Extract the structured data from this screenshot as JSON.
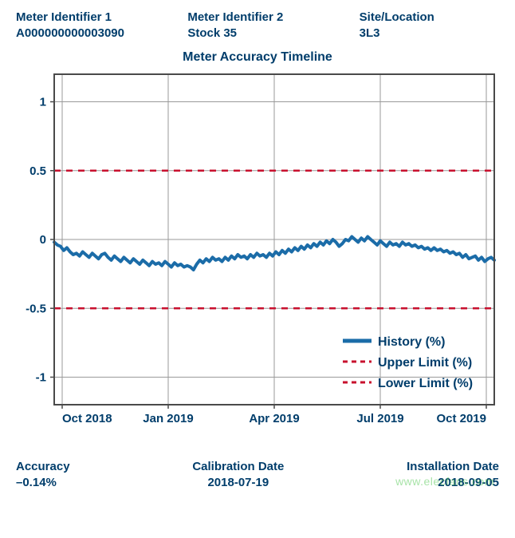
{
  "header": {
    "col1": {
      "label": "Meter Identifier 1",
      "value": "A000000000003090"
    },
    "col2": {
      "label": "Meter Identifier 2",
      "value": "Stock 35"
    },
    "col3": {
      "label": "Site/Location",
      "value": "3L3"
    }
  },
  "chart": {
    "type": "line",
    "title": "Meter Accuracy Timeline",
    "title_fontsize": 16,
    "background_color": "#ffffff",
    "plot_border_color": "#4a4a4a",
    "plot_border_width": 2,
    "grid_color": "#9a9a9a",
    "grid_width": 1,
    "label_color": "#003d6b",
    "label_fontsize": 15,
    "ylim": [
      -1.2,
      1.2
    ],
    "yticks": [
      1,
      0.5,
      0,
      -0.5,
      -1
    ],
    "ytick_labels": [
      "1",
      "0.5",
      "0",
      "-0.5",
      "-1"
    ],
    "x_categories": [
      "Oct 2018",
      "Jan 2019",
      "Apr 2019",
      "Jul 2019",
      "Oct 2019"
    ],
    "limits": {
      "upper": 0.5,
      "lower": -0.5,
      "color": "#c8102e",
      "dash": "8,7",
      "width": 2.5
    },
    "history": {
      "color": "#1b6ca8",
      "width": 4,
      "values": [
        -0.02,
        -0.04,
        -0.05,
        -0.08,
        -0.06,
        -0.09,
        -0.11,
        -0.1,
        -0.12,
        -0.09,
        -0.11,
        -0.13,
        -0.1,
        -0.12,
        -0.14,
        -0.11,
        -0.1,
        -0.13,
        -0.15,
        -0.12,
        -0.14,
        -0.16,
        -0.13,
        -0.15,
        -0.17,
        -0.14,
        -0.16,
        -0.18,
        -0.15,
        -0.17,
        -0.19,
        -0.16,
        -0.18,
        -0.17,
        -0.19,
        -0.16,
        -0.18,
        -0.2,
        -0.17,
        -0.19,
        -0.18,
        -0.2,
        -0.19,
        -0.2,
        -0.22,
        -0.18,
        -0.15,
        -0.17,
        -0.14,
        -0.16,
        -0.13,
        -0.15,
        -0.14,
        -0.16,
        -0.13,
        -0.15,
        -0.12,
        -0.14,
        -0.11,
        -0.13,
        -0.12,
        -0.14,
        -0.11,
        -0.13,
        -0.1,
        -0.12,
        -0.11,
        -0.13,
        -0.1,
        -0.12,
        -0.09,
        -0.11,
        -0.08,
        -0.1,
        -0.07,
        -0.09,
        -0.06,
        -0.08,
        -0.05,
        -0.07,
        -0.04,
        -0.06,
        -0.03,
        -0.05,
        -0.02,
        -0.04,
        -0.01,
        -0.03,
        0.0,
        -0.02,
        -0.05,
        -0.03,
        -0.0,
        -0.01,
        0.02,
        0.0,
        -0.02,
        0.01,
        -0.01,
        0.02,
        0.0,
        -0.02,
        -0.04,
        -0.01,
        -0.03,
        -0.05,
        -0.02,
        -0.04,
        -0.03,
        -0.05,
        -0.02,
        -0.04,
        -0.03,
        -0.05,
        -0.04,
        -0.06,
        -0.05,
        -0.07,
        -0.06,
        -0.08,
        -0.06,
        -0.08,
        -0.07,
        -0.09,
        -0.08,
        -0.1,
        -0.09,
        -0.11,
        -0.1,
        -0.13,
        -0.11,
        -0.14,
        -0.13,
        -0.12,
        -0.15,
        -0.13,
        -0.16,
        -0.14,
        -0.13,
        -0.15
      ]
    },
    "legend": {
      "items": [
        {
          "label": "History (%)",
          "style": "solid",
          "color": "#1b6ca8",
          "width": 5
        },
        {
          "label": "Upper Limit (%)",
          "style": "dash",
          "color": "#c8102e",
          "width": 3
        },
        {
          "label": "Lower Limit (%)",
          "style": "dash",
          "color": "#c8102e",
          "width": 3
        }
      ],
      "text_color": "#003d6b",
      "fontsize": 16
    }
  },
  "footer": {
    "col1": {
      "label": "Accuracy",
      "value": "–0.14%"
    },
    "col2": {
      "label": "Calibration Date",
      "value": "2018-07-19"
    },
    "col3": {
      "label": "Installation Date",
      "value": "2018-09-05"
    }
  },
  "watermark": "www.elecfans.com"
}
